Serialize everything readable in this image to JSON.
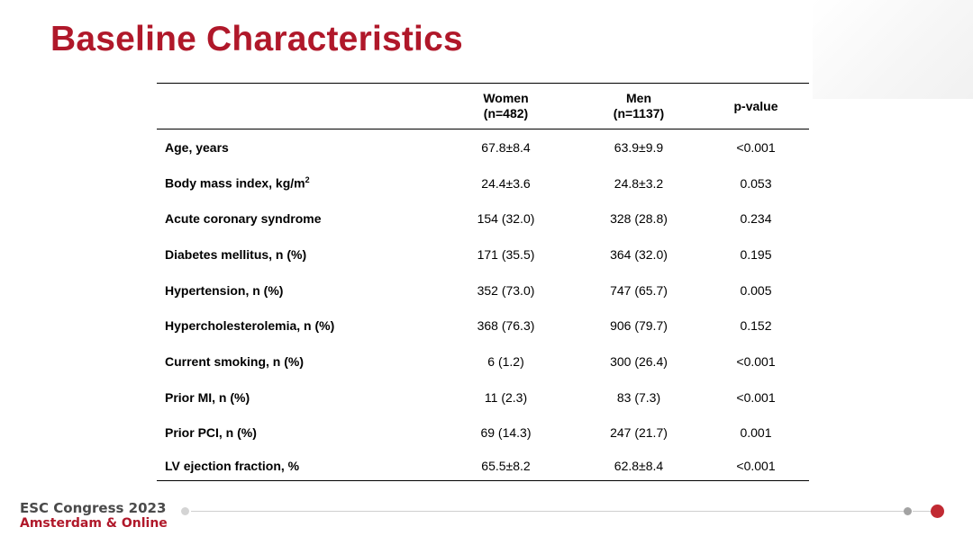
{
  "title": "Baseline Characteristics",
  "table": {
    "headers": [
      {
        "line1": "",
        "line2": ""
      },
      {
        "line1": "Women",
        "line2": "(n=482)"
      },
      {
        "line1": "Men",
        "line2": "(n=1137)"
      },
      {
        "line1": "p-value",
        "line2": ""
      }
    ],
    "rows": [
      {
        "label": "Age, years",
        "sup": "",
        "women": "67.8±8.4",
        "men": "63.9±9.9",
        "p": "<0.001"
      },
      {
        "label": "Body mass index, kg/m",
        "sup": "2",
        "women": "24.4±3.6",
        "men": "24.8±3.2",
        "p": "0.053"
      },
      {
        "label": "Acute coronary syndrome",
        "sup": "",
        "women": "154 (32.0)",
        "men": "328 (28.8)",
        "p": "0.234"
      },
      {
        "label": "Diabetes mellitus, n (%)",
        "sup": "",
        "women": "171 (35.5)",
        "men": "364 (32.0)",
        "p": "0.195"
      },
      {
        "label": "Hypertension, n (%)",
        "sup": "",
        "women": "352 (73.0)",
        "men": "747 (65.7)",
        "p": "0.005"
      },
      {
        "label": "Hypercholesterolemia, n (%)",
        "sup": "",
        "women": "368 (76.3)",
        "men": "906 (79.7)",
        "p": "0.152"
      },
      {
        "label": "Current smoking, n (%)",
        "sup": "",
        "women": "6 (1.2)",
        "men": "300 (26.4)",
        "p": "<0.001"
      },
      {
        "label": "Prior MI, n (%)",
        "sup": "",
        "women": "11 (2.3)",
        "men": "83 (7.3)",
        "p": "<0.001"
      },
      {
        "label": "Prior PCI, n (%)",
        "sup": "",
        "women": "69 (14.3)",
        "men": "247 (21.7)",
        "p": "0.001"
      },
      {
        "label": "LV ejection fraction, %",
        "sup": "",
        "women": "65.5±8.2",
        "men": "62.8±8.4",
        "p": "<0.001"
      }
    ]
  },
  "footer": {
    "line1": "ESC Congress 2023",
    "line2": "Amsterdam & Online"
  },
  "colors": {
    "title": "#b0182a",
    "accent_dot": "#c12a33",
    "footer_text": "#4a4a4a"
  }
}
